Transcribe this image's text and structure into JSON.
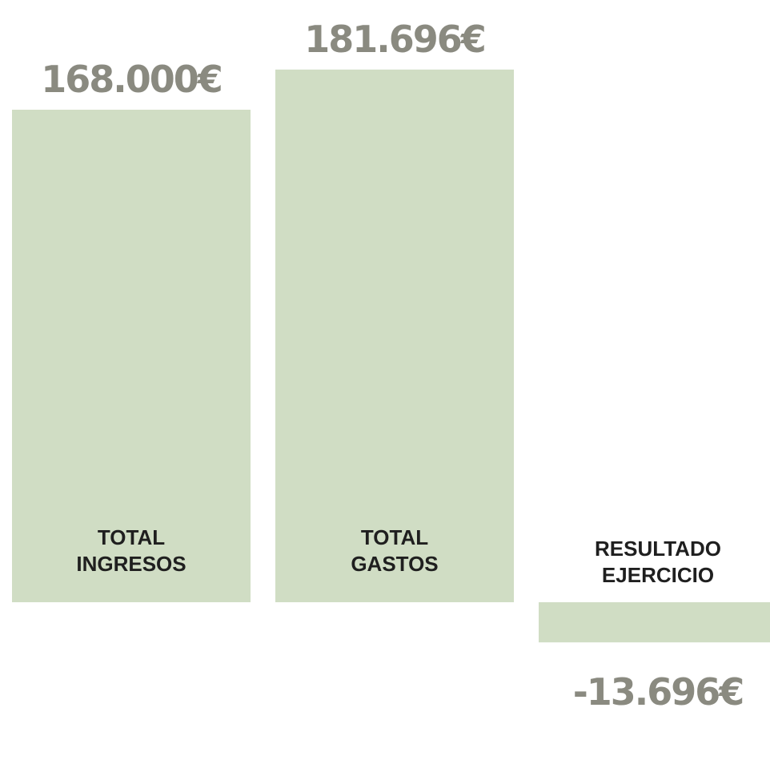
{
  "chart_data": {
    "type": "bar",
    "categories": [
      [
        "TOTAL",
        "INGRESOS"
      ],
      [
        "TOTAL",
        "GASTOS"
      ],
      [
        "RESULTADO",
        "EJERCICIO"
      ]
    ],
    "values": [
      168000,
      181696,
      -13696
    ],
    "value_labels": [
      "168.000€",
      "181.696€",
      "-13.696€"
    ],
    "title": "",
    "xlabel": "",
    "ylabel": "",
    "ylim": [
      -25000,
      200000
    ],
    "grid": false,
    "legend": "none",
    "bar_color": "#d0ddc4",
    "value_label_color": "#8a8a80",
    "category_label_color": "#1f1f1f"
  }
}
